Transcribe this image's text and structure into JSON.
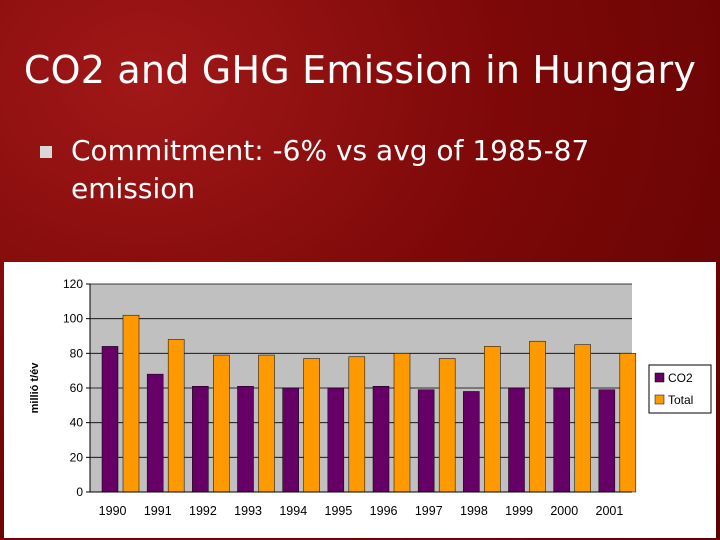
{
  "slide": {
    "title": "CO2 and GHG Emission in Hungary",
    "bullet": "Commitment: -6% vs avg of 1985-87 emission"
  },
  "chart_data": {
    "type": "bar",
    "title": "",
    "xlabel": "",
    "ylabel": "millió t/év",
    "ylim": [
      0,
      120
    ],
    "yticks": [
      0,
      20,
      40,
      60,
      80,
      100,
      120
    ],
    "grid": true,
    "legend_position": "right",
    "categories": [
      "1990",
      "1991",
      "1992",
      "1993",
      "1994",
      "1995",
      "1996",
      "1997",
      "1998",
      "1999",
      "2000",
      "2001"
    ],
    "series": [
      {
        "name": "CO2",
        "color": "#660066",
        "values": [
          84,
          68,
          61,
          61,
          60,
          60,
          61,
          59,
          58,
          60,
          60,
          59
        ]
      },
      {
        "name": "Total",
        "color": "#ff9900",
        "values": [
          102,
          88,
          79,
          79,
          77,
          78,
          80,
          77,
          84,
          87,
          85,
          80
        ]
      }
    ],
    "plot_background": "#c0c0c0"
  }
}
